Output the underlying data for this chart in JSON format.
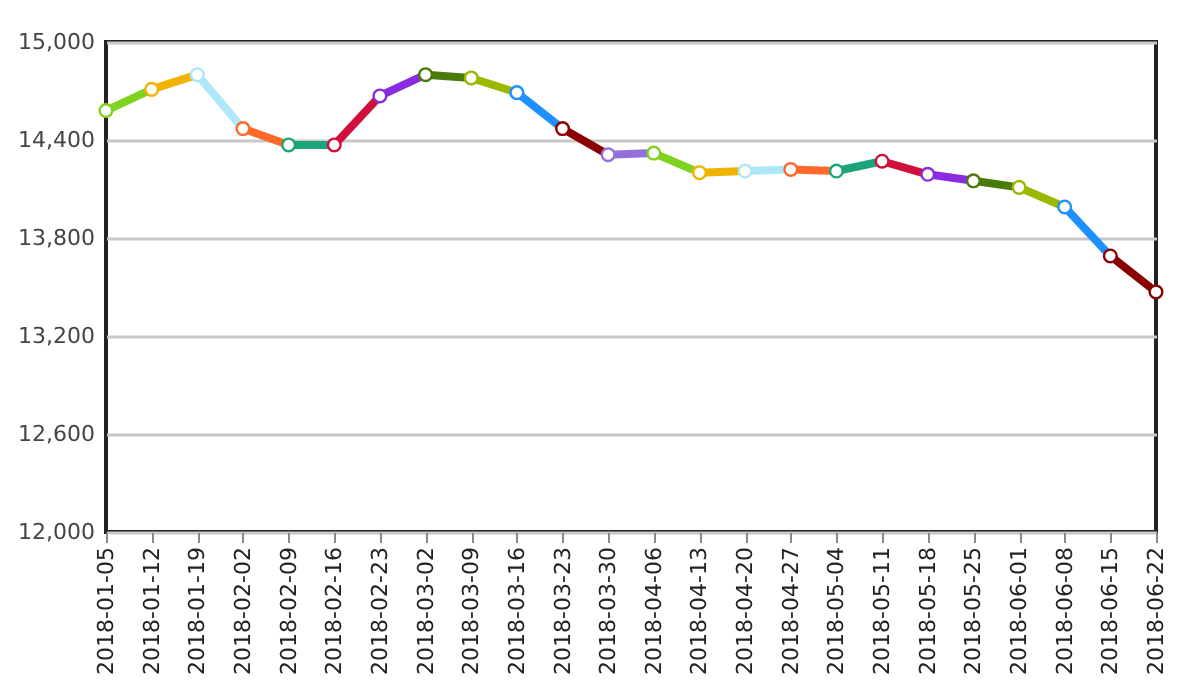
{
  "chart_data": {
    "type": "line",
    "categories": [
      "2018-01-05",
      "2018-01-12",
      "2018-01-19",
      "2018-02-02",
      "2018-02-09",
      "2018-02-16",
      "2018-02-23",
      "2018-03-02",
      "2018-03-09",
      "2018-03-16",
      "2018-03-23",
      "2018-03-30",
      "2018-04-06",
      "2018-04-13",
      "2018-04-20",
      "2018-04-27",
      "2018-05-04",
      "2018-05-11",
      "2018-05-18",
      "2018-05-25",
      "2018-06-01",
      "2018-06-08",
      "2018-06-15",
      "2018-06-22"
    ],
    "series": [
      {
        "values": [
          14580,
          14710,
          14800,
          14470,
          14370,
          14370,
          14670,
          14800,
          14780,
          14690,
          14470,
          14310,
          14320,
          14200,
          14210,
          14220,
          14210,
          14270,
          14190,
          14150,
          14110,
          13990,
          13690,
          13470
        ],
        "colors": [
          "#7ed321",
          "#f0b400",
          "#aee8f8",
          "#ff6a2a",
          "#1aa57a",
          "#d0103a",
          "#8a2be2",
          "#4a7a0a",
          "#9ab800",
          "#1e90ff",
          "#8b0000",
          "#9370db",
          "#7ed321",
          "#f0b400",
          "#aee8f8",
          "#ff6a2a",
          "#1aa57a",
          "#d0103a",
          "#8a2be2",
          "#4a7a0a",
          "#9ab800",
          "#1e90ff",
          "#8b0000",
          "#8b0000"
        ]
      }
    ],
    "ylim": [
      12000,
      15000
    ],
    "yticks": [
      {
        "value": 12000,
        "label": "12,000"
      },
      {
        "value": 12600,
        "label": "12,600"
      },
      {
        "value": 13200,
        "label": "13,200"
      },
      {
        "value": 13800,
        "label": "13,800"
      },
      {
        "value": 14400,
        "label": "14,400"
      },
      {
        "value": 15000,
        "label": "15,000"
      }
    ],
    "grid": "y",
    "marker": "circle",
    "line_style": "solid"
  }
}
